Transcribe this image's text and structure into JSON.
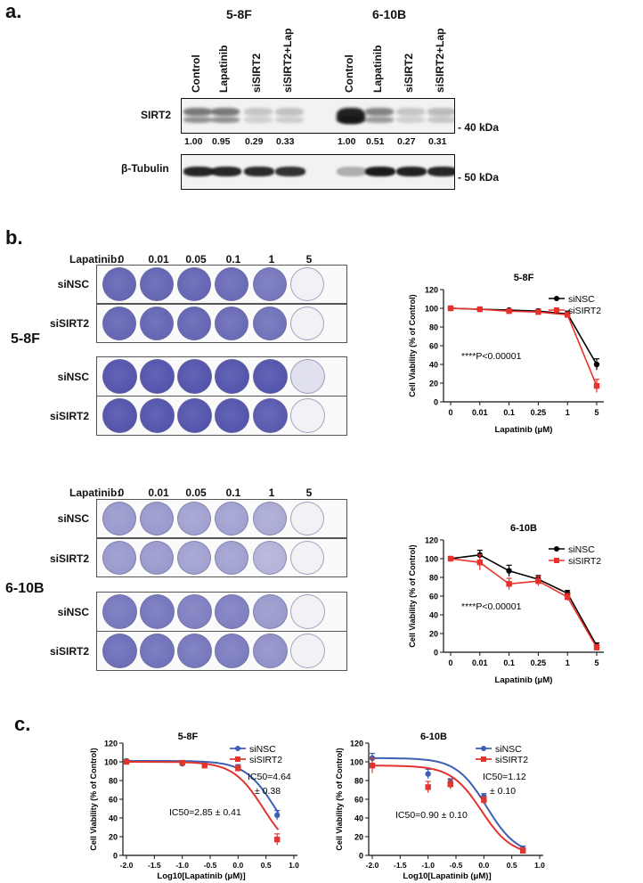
{
  "panel_a": {
    "letter": "a.",
    "cell_lines": [
      "5-8F",
      "6-10B"
    ],
    "lanes": [
      "Control",
      "Lapatinib",
      "siSIRT2",
      "siSIRT2+Lap",
      "Control",
      "Lapatinib",
      "siSIRT2",
      "siSIRT2+Lap"
    ],
    "sirt2_label": "SIRT2",
    "tubulin_label": "β-Tubulin",
    "sirt2_kda": "- 40 kDa",
    "tubulin_kda": "- 50 kDa",
    "quant": [
      "1.00",
      "0.95",
      "0.29",
      "0.33",
      "1.00",
      "0.51",
      "0.27",
      "0.31"
    ]
  },
  "panel_b": {
    "letter": "b.",
    "dose_label": "Lapatinib:",
    "doses": [
      "0",
      "0.01",
      "0.05",
      "0.1",
      "1",
      "5"
    ],
    "row_labels": [
      "siNSC",
      "siSIRT2",
      "siNSC",
      "siSIRT2"
    ],
    "side_labels": [
      "5-8F",
      "6-10B"
    ],
    "stain_color": "#4a4ba8",
    "stain_levels": {
      "top_r1": [
        0.85,
        0.85,
        0.85,
        0.82,
        0.75,
        0.05
      ],
      "top_r2": [
        0.85,
        0.85,
        0.85,
        0.82,
        0.78,
        0.0
      ],
      "top_r3": [
        0.95,
        0.95,
        0.95,
        0.95,
        0.95,
        0.15
      ],
      "top_r4": [
        0.95,
        0.95,
        0.95,
        0.95,
        0.92,
        0.05
      ],
      "bot_r1": [
        0.55,
        0.55,
        0.5,
        0.5,
        0.45,
        0.0
      ],
      "bot_r2": [
        0.55,
        0.55,
        0.5,
        0.5,
        0.4,
        0.0
      ],
      "bot_r3": [
        0.75,
        0.75,
        0.7,
        0.7,
        0.55,
        0.0
      ],
      "bot_r4": [
        0.8,
        0.78,
        0.75,
        0.72,
        0.6,
        0.05
      ]
    }
  },
  "panel_c": {
    "letter": "c."
  },
  "chart_data": [
    {
      "type": "line",
      "title": "5-8F",
      "xlabel": "Lapatinib (μM)",
      "ylabel": "Cell Viability (% of Control)",
      "categories": [
        "0",
        "0.01",
        "0.1",
        "0.25",
        "1",
        "5"
      ],
      "ylim": [
        0,
        120
      ],
      "yticks": [
        0,
        20,
        40,
        60,
        80,
        100,
        120
      ],
      "annotation": "****P<0.00001",
      "legend": "top-right",
      "series": [
        {
          "name": "siNSC",
          "color": "#000000",
          "values": [
            100,
            99,
            98,
            97,
            94,
            40
          ],
          "errors": [
            1,
            1.5,
            1.5,
            2,
            3,
            6
          ]
        },
        {
          "name": "siSIRT2",
          "color": "#e8312b",
          "values": [
            100,
            99,
            97,
            96,
            93,
            17
          ],
          "errors": [
            1,
            1.5,
            1.5,
            2,
            3,
            7
          ]
        }
      ]
    },
    {
      "type": "line",
      "title": "6-10B",
      "xlabel": "Lapatinib (μM)",
      "ylabel": "Cell Viability (% of Control)",
      "categories": [
        "0",
        "0.01",
        "0.1",
        "0.25",
        "1",
        "5"
      ],
      "ylim": [
        0,
        120
      ],
      "yticks": [
        0,
        20,
        40,
        60,
        80,
        100,
        120
      ],
      "annotation": "****P<0.00001",
      "legend": "top-right",
      "series": [
        {
          "name": "siNSC",
          "color": "#000000",
          "values": [
            100,
            104,
            87,
            78,
            63,
            7
          ],
          "errors": [
            1,
            5,
            6,
            4,
            3,
            3
          ]
        },
        {
          "name": "siSIRT2",
          "color": "#e8312b",
          "values": [
            100,
            96,
            73,
            76,
            59,
            5
          ],
          "errors": [
            1,
            8,
            6,
            5,
            4,
            3
          ]
        }
      ]
    },
    {
      "type": "scatter",
      "title": "5-8F",
      "xlabel": "Log10[Lapatinib (μM)]",
      "ylabel": "Cell Viability (% of Control)",
      "xlim": [
        -2.0,
        1.0
      ],
      "xticks": [
        "-2.0",
        "-1.5",
        "-1.0",
        "-0.5",
        "0.0",
        "0.5",
        "1.0"
      ],
      "ylim": [
        0,
        120
      ],
      "yticks": [
        0,
        20,
        40,
        60,
        80,
        100,
        120
      ],
      "annotations": [
        "IC50=4.64",
        "± 0.38",
        "IC50=2.85 ± 0.41"
      ],
      "legend": "top-right",
      "series": [
        {
          "name": "siNSC",
          "color": "#3a5fb3",
          "x": [
            -2,
            -1,
            -0.6,
            0,
            0.7
          ],
          "y": [
            101,
            98,
            97,
            94,
            43
          ],
          "errors": [
            1,
            1,
            2,
            3,
            5
          ],
          "ic50": 4.64
        },
        {
          "name": "siSIRT2",
          "color": "#e0352d",
          "x": [
            -2,
            -1,
            -0.6,
            0,
            0.7
          ],
          "y": [
            100,
            99,
            96,
            93,
            17
          ],
          "errors": [
            1,
            1,
            2,
            3,
            6
          ],
          "ic50": 2.85
        }
      ]
    },
    {
      "type": "scatter",
      "title": "6-10B",
      "xlabel": "Log10[Lapatinib (μM)]",
      "ylabel": "Cell Viability (% of Control)",
      "xlim": [
        -2.0,
        1.0
      ],
      "xticks": [
        "-2.0",
        "-1.5",
        "-1.0",
        "-0.5",
        "0.0",
        "0.5",
        "1.0"
      ],
      "ylim": [
        0,
        120
      ],
      "yticks": [
        0,
        20,
        40,
        60,
        80,
        100,
        120
      ],
      "annotations": [
        "IC50=1.12",
        "± 0.10",
        "IC50=0.90 ± 0.10"
      ],
      "legend": "top-right",
      "series": [
        {
          "name": "siNSC",
          "color": "#3a5fb3",
          "x": [
            -2,
            -1,
            -0.6,
            0,
            0.7
          ],
          "y": [
            104,
            87,
            78,
            63,
            7
          ],
          "errors": [
            5,
            5,
            4,
            3,
            3
          ],
          "ic50": 1.12
        },
        {
          "name": "siSIRT2",
          "color": "#e0352d",
          "x": [
            -2,
            -1,
            -0.6,
            0,
            0.7
          ],
          "y": [
            96,
            73,
            76,
            59,
            5
          ],
          "errors": [
            8,
            6,
            5,
            4,
            3
          ],
          "ic50": 0.9
        }
      ]
    }
  ]
}
